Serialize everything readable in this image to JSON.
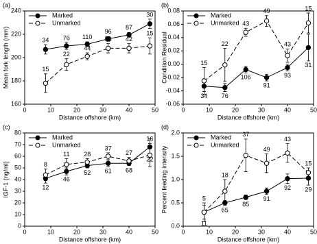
{
  "chart_data": [
    {
      "type": "line",
      "title": "(a)",
      "x_label": "Distance offshore (km)",
      "y_label": "Mean fork length (mm)",
      "x": [
        8,
        16,
        24,
        32,
        40,
        48
      ],
      "xlim": [
        0,
        50
      ],
      "xticks": [
        0,
        10,
        20,
        30,
        40,
        50
      ],
      "ylim": [
        160,
        240
      ],
      "yticks": [
        160,
        180,
        200,
        220,
        240
      ],
      "legend": "upper left",
      "series": [
        {
          "name": "Marked",
          "color": "#000000",
          "marker": "filled",
          "linestyle": "solid",
          "values": [
            207,
            210,
            211.5,
            216,
            219.5,
            229
          ],
          "errors": [
            4,
            3,
            2,
            2,
            2,
            4
          ],
          "n": [
            34,
            76,
            110,
            96,
            87,
            30
          ]
        },
        {
          "name": "Unmarked",
          "color": "#000000",
          "marker": "open",
          "linestyle": "dashed",
          "values": [
            178,
            194,
            201,
            208,
            208,
            210
          ],
          "errors": [
            8,
            5,
            3,
            4,
            4,
            7
          ],
          "n": [
            15,
            22,
            44,
            53,
            42,
            15
          ]
        }
      ]
    },
    {
      "type": "line",
      "title": "(b)",
      "x_label": "Distance offshore (km)",
      "y_label": "Condition Residual",
      "x": [
        8,
        16,
        24,
        32,
        40,
        48
      ],
      "xlim": [
        0,
        50
      ],
      "xticks": [
        0,
        10,
        20,
        30,
        40,
        50
      ],
      "ylim": [
        -0.06,
        0.08
      ],
      "yticks": [
        -0.06,
        -0.04,
        -0.02,
        {
          "value": 0,
          "label": "0.00"
        },
        0.02,
        0.04,
        0.06,
        0.08
      ],
      "legend": "upper left",
      "series": [
        {
          "name": "Marked",
          "color": "#000000",
          "marker": "filled",
          "linestyle": "solid",
          "values": [
            -0.033,
            -0.035,
            -0.008,
            -0.02,
            -0.005,
            0.025
          ],
          "errors": [
            0.008,
            0.006,
            0.005,
            0.005,
            0.005,
            0.02
          ],
          "n": [
            34,
            76,
            106,
            91,
            93,
            31
          ]
        },
        {
          "name": "Unmarked",
          "color": "#000000",
          "marker": "open",
          "linestyle": "dashed",
          "values": [
            -0.025,
            -0.001,
            0.048,
            0.065,
            0.013,
            0.062
          ],
          "errors": [
            0.02,
            0.025,
            0.006,
            0.008,
            0.01,
            0.015
          ],
          "n": [
            15,
            22,
            43,
            49,
            43,
            15
          ]
        }
      ]
    },
    {
      "type": "line",
      "title": "(c)",
      "x_label": "Distance offshore (km)",
      "y_label": "IGF-1 (ng/ml)",
      "x": [
        8,
        16,
        24,
        32,
        40,
        48
      ],
      "xlim": [
        0,
        50
      ],
      "xticks": [
        0,
        10,
        20,
        30,
        40,
        50
      ],
      "ylim": [
        0,
        80
      ],
      "yticks": [
        0,
        10,
        20,
        30,
        40,
        50,
        60,
        70,
        80
      ],
      "legend": "upper left",
      "series": [
        {
          "name": "Marked",
          "color": "#000000",
          "marker": "filled",
          "linestyle": "solid",
          "values": [
            41,
            47,
            52,
            54,
            54,
            68
          ],
          "errors": [
            4,
            3,
            2,
            3,
            2,
            7
          ],
          "n": [
            12,
            46,
            52,
            61,
            68,
            22
          ]
        },
        {
          "name": "Unmarked",
          "color": "#000000",
          "marker": "open",
          "linestyle": "dashed",
          "values": [
            44,
            53,
            55,
            60,
            56,
            61
          ],
          "errors": [
            5,
            5,
            3,
            3,
            3,
            10
          ],
          "n": [
            8,
            11,
            28,
            37,
            27,
            16
          ]
        }
      ]
    },
    {
      "type": "line",
      "title": "(d)",
      "x_label": "Distance offshore (km)",
      "y_label": "Percent feeding intensity",
      "x": [
        8,
        16,
        24,
        32,
        40,
        48
      ],
      "xlim": [
        0,
        50
      ],
      "xticks": [
        0,
        10,
        20,
        30,
        40,
        50
      ],
      "ylim": [
        0,
        2
      ],
      "yticks": [
        {
          "value": 0,
          "label": "0.0"
        },
        0.5,
        {
          "value": 1,
          "label": "1.0"
        },
        1.5,
        {
          "value": 2,
          "label": "2.0"
        }
      ],
      "legend": "upper left",
      "series": [
        {
          "name": "Marked",
          "color": "#000000",
          "marker": "filled",
          "linestyle": "solid",
          "values": [
            0.3,
            0.5,
            0.62,
            0.75,
            1.02,
            1.03
          ],
          "errors": [
            0.15,
            0.05,
            0.05,
            0.07,
            0.1,
            0.15
          ],
          "n": [
            11,
            65,
            85,
            91,
            92,
            29
          ]
        },
        {
          "name": "Unmarked",
          "color": "#000000",
          "marker": "open",
          "linestyle": "dashed",
          "values": [
            0.3,
            0.75,
            1.52,
            1.35,
            1.57,
            1.15
          ],
          "errors": [
            0.2,
            0.25,
            0.35,
            0.2,
            0.2,
            0.1
          ],
          "n": [
            5,
            18,
            37,
            49,
            43,
            15
          ]
        }
      ]
    }
  ]
}
